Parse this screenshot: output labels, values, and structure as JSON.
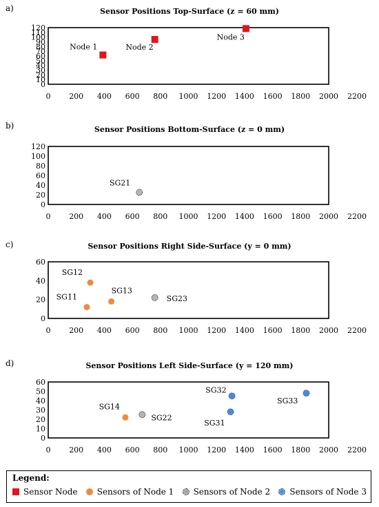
{
  "chart_data": [
    {
      "type": "scatter",
      "panel": "a)",
      "title": "Sensor Positions Top-Surface (z = 60 mm)",
      "xlim": [
        0,
        2200
      ],
      "xticks": [
        0,
        200,
        400,
        600,
        800,
        1000,
        1200,
        1400,
        1600,
        1800,
        2000,
        2200
      ],
      "ylim": [
        0,
        120
      ],
      "yticks": [
        0,
        10,
        20,
        30,
        40,
        50,
        60,
        70,
        80,
        90,
        100,
        110,
        120
      ],
      "points": [
        {
          "x": 390,
          "y": 62,
          "label": "Node 1",
          "series": "node"
        },
        {
          "x": 760,
          "y": 95,
          "label": "Node 2",
          "series": "node"
        },
        {
          "x": 1410,
          "y": 118,
          "label": "Node 3",
          "series": "node"
        }
      ]
    },
    {
      "type": "scatter",
      "panel": "b)",
      "title": "Sensor Positions Bottom-Surface (z = 0 mm)",
      "xlim": [
        0,
        2200
      ],
      "xticks": [
        0,
        200,
        400,
        600,
        800,
        1000,
        1200,
        1400,
        1600,
        1800,
        2000,
        2200
      ],
      "ylim": [
        0,
        120
      ],
      "yticks": [
        0,
        20,
        40,
        60,
        80,
        100,
        120
      ],
      "points": [
        {
          "x": 650,
          "y": 25,
          "label": "SG21",
          "series": "node2"
        }
      ]
    },
    {
      "type": "scatter",
      "panel": "c)",
      "title": "Sensor Positions Right Side-Surface (y = 0 mm)",
      "xlim": [
        0,
        2200
      ],
      "xticks": [
        0,
        200,
        400,
        600,
        800,
        1000,
        1200,
        1400,
        1600,
        1800,
        2000,
        2200
      ],
      "ylim": [
        0,
        60
      ],
      "yticks": [
        0,
        20,
        40,
        60
      ],
      "points": [
        {
          "x": 300,
          "y": 38,
          "label": "SG12",
          "series": "node1"
        },
        {
          "x": 275,
          "y": 12,
          "label": "SG11",
          "series": "node1"
        },
        {
          "x": 450,
          "y": 18,
          "label": "SG13",
          "series": "node1"
        },
        {
          "x": 760,
          "y": 22,
          "label": "SG23",
          "series": "node2"
        }
      ]
    },
    {
      "type": "scatter",
      "panel": "d)",
      "title": "Sensor Positions Left Side-Surface (y = 120 mm)",
      "xlim": [
        0,
        2200
      ],
      "xticks": [
        0,
        200,
        400,
        600,
        800,
        1000,
        1200,
        1400,
        1600,
        1800,
        2000,
        2200
      ],
      "ylim": [
        0,
        60
      ],
      "yticks": [
        0,
        10,
        20,
        30,
        40,
        50,
        60
      ],
      "points": [
        {
          "x": 550,
          "y": 22,
          "label": "SG14",
          "series": "node1"
        },
        {
          "x": 670,
          "y": 25,
          "label": "SG22",
          "series": "node2"
        },
        {
          "x": 1310,
          "y": 45,
          "label": "SG32",
          "series": "node3"
        },
        {
          "x": 1300,
          "y": 28,
          "label": "SG31",
          "series": "node3"
        },
        {
          "x": 1840,
          "y": 48,
          "label": "SG33",
          "series": "node3"
        }
      ]
    }
  ],
  "legend": {
    "title": "Legend:",
    "items": [
      {
        "key": "node",
        "label": "Sensor Node"
      },
      {
        "key": "node1",
        "label": "Sensors of Node 1"
      },
      {
        "key": "node2",
        "label": "Sensors of Node 2"
      },
      {
        "key": "node3",
        "label": "Sensors of Node 3"
      }
    ]
  },
  "colors": {
    "node": "#e0161b",
    "node1": "#ed8b3f",
    "node2": "#b5b5b5",
    "node3": "#4a8ad8"
  }
}
